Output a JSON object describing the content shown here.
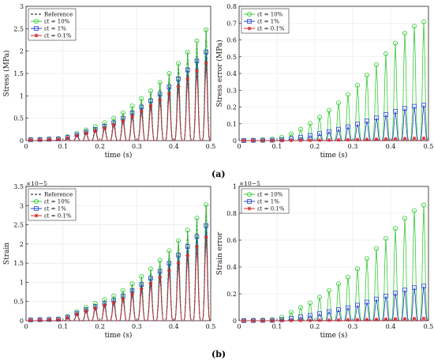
{
  "captions": [
    "(a)",
    "(b)"
  ],
  "chart_data": [
    {
      "type": "line",
      "xlabel": "time (s)",
      "ylabel": "Stress (MPa)",
      "xlim": [
        0,
        0.5
      ],
      "ylim": [
        0,
        3
      ],
      "xticks": [
        0,
        0.1,
        0.2,
        0.3,
        0.4,
        0.5
      ],
      "yticks": [
        0,
        0.5,
        1,
        1.5,
        2,
        2.5,
        3
      ],
      "xtick_labels": [
        "0",
        "0.1",
        "0.2",
        "0.3",
        "0.4",
        "0.5"
      ],
      "ytick_labels": [
        "0",
        "0.5",
        "1",
        "1.5",
        "2",
        "2.5",
        "3"
      ],
      "exponent_label": "",
      "grid": true,
      "legend_position": "top-left",
      "envelope": {
        "x": [
          0,
          0.1,
          0.15,
          0.2,
          0.25,
          0.3,
          0.35,
          0.4,
          0.45,
          0.5
        ],
        "y": [
          0.02,
          0.05,
          0.2,
          0.35,
          0.55,
          0.85,
          1.2,
          1.6,
          2.1,
          2.6
        ]
      },
      "series": [
        {
          "name": "Reference",
          "style": "dashed",
          "color": "#000000",
          "marker": "none",
          "scale": 1.0
        },
        {
          "name": "εt = 10%",
          "style": "solid",
          "color": "#33cc33",
          "marker": "circle",
          "scale": 1.0
        },
        {
          "name": "εt = 1%",
          "style": "solid",
          "color": "#1f3fd0",
          "marker": "square",
          "scale": 0.8
        },
        {
          "name": "εt = 0.1%",
          "style": "solid",
          "color": "#d62728",
          "marker": "star",
          "scale": 0.7
        }
      ]
    },
    {
      "type": "line",
      "xlabel": "time (s)",
      "ylabel": "Stress error (MPa)",
      "xlim": [
        0,
        0.5
      ],
      "ylim": [
        0,
        0.8
      ],
      "xticks": [
        0,
        0.1,
        0.2,
        0.3,
        0.4,
        0.5
      ],
      "yticks": [
        0,
        0.1,
        0.2,
        0.3,
        0.4,
        0.5,
        0.6,
        0.7,
        0.8
      ],
      "xtick_labels": [
        "0",
        "0.1",
        "0.2",
        "0.3",
        "0.4",
        "0.5"
      ],
      "ytick_labels": [
        "0",
        "0.1",
        "0.2",
        "0.3",
        "0.4",
        "0.5",
        "0.6",
        "0.7",
        "0.8"
      ],
      "exponent_label": "",
      "grid": true,
      "legend_position": "top-left",
      "envelope": {
        "x": [
          0,
          0.1,
          0.15,
          0.2,
          0.25,
          0.3,
          0.35,
          0.4,
          0.45,
          0.5
        ],
        "y": [
          0.0,
          0.01,
          0.05,
          0.12,
          0.2,
          0.3,
          0.42,
          0.55,
          0.67,
          0.72
        ]
      },
      "series": [
        {
          "name": "εt = 10%",
          "style": "solid",
          "color": "#33cc33",
          "marker": "circle",
          "scale": 1.0
        },
        {
          "name": "εt = 1%",
          "style": "solid",
          "color": "#1f3fd0",
          "marker": "square",
          "scale": 0.3
        },
        {
          "name": "εt = 0.1%",
          "style": "solid",
          "color": "#d62728",
          "marker": "star",
          "scale": 0.02
        }
      ]
    },
    {
      "type": "line",
      "xlabel": "time (s)",
      "ylabel": "Strain",
      "xlim": [
        0,
        0.5
      ],
      "ylim": [
        0,
        3.5
      ],
      "xticks": [
        0,
        0.1,
        0.2,
        0.3,
        0.4,
        0.5
      ],
      "yticks": [
        0,
        0.5,
        1,
        1.5,
        2,
        2.5,
        3,
        3.5
      ],
      "xtick_labels": [
        "0",
        "0.1",
        "0.2",
        "0.3",
        "0.4",
        "0.5"
      ],
      "ytick_labels": [
        "0",
        "0.5",
        "1",
        "1.5",
        "2",
        "2.5",
        "3",
        "3.5"
      ],
      "exponent_label": "×10−5",
      "grid": true,
      "legend_position": "top-left",
      "envelope": {
        "x": [
          0,
          0.1,
          0.15,
          0.2,
          0.25,
          0.3,
          0.35,
          0.4,
          0.45,
          0.5
        ],
        "y": [
          0.02,
          0.05,
          0.3,
          0.5,
          0.7,
          1.05,
          1.45,
          1.95,
          2.5,
          3.2
        ]
      },
      "series": [
        {
          "name": "Reference",
          "style": "dashed",
          "color": "#000000",
          "marker": "none",
          "scale": 1.0
        },
        {
          "name": "εt = 10%",
          "style": "solid",
          "color": "#33cc33",
          "marker": "circle",
          "scale": 1.0
        },
        {
          "name": "εt = 1%",
          "style": "solid",
          "color": "#1f3fd0",
          "marker": "square",
          "scale": 0.82
        },
        {
          "name": "εt = 0.1%",
          "style": "solid",
          "color": "#d62728",
          "marker": "star",
          "scale": 0.72
        }
      ]
    },
    {
      "type": "line",
      "xlabel": "time (s)",
      "ylabel": "Strain error",
      "xlim": [
        0,
        0.5
      ],
      "ylim": [
        0,
        1
      ],
      "xticks": [
        0,
        0.1,
        0.2,
        0.3,
        0.4,
        0.5
      ],
      "yticks": [
        0,
        0.2,
        0.4,
        0.6,
        0.8,
        1
      ],
      "xtick_labels": [
        "0",
        "0.1",
        "0.2",
        "0.3",
        "0.4",
        "0.5"
      ],
      "ytick_labels": [
        "0",
        "0.2",
        "0.4",
        "0.6",
        "0.8",
        "1"
      ],
      "exponent_label": "×10−5",
      "grid": true,
      "legend_position": "top-left",
      "envelope": {
        "x": [
          0,
          0.1,
          0.15,
          0.2,
          0.25,
          0.3,
          0.35,
          0.4,
          0.45,
          0.5
        ],
        "y": [
          0.0,
          0.01,
          0.08,
          0.15,
          0.25,
          0.35,
          0.5,
          0.65,
          0.8,
          0.88
        ]
      },
      "series": [
        {
          "name": "εt = 10%",
          "style": "solid",
          "color": "#33cc33",
          "marker": "circle",
          "scale": 1.0
        },
        {
          "name": "εt = 1%",
          "style": "solid",
          "color": "#1f3fd0",
          "marker": "square",
          "scale": 0.3
        },
        {
          "name": "εt = 0.1%",
          "style": "solid",
          "color": "#d62728",
          "marker": "star",
          "scale": 0.02
        }
      ]
    }
  ]
}
